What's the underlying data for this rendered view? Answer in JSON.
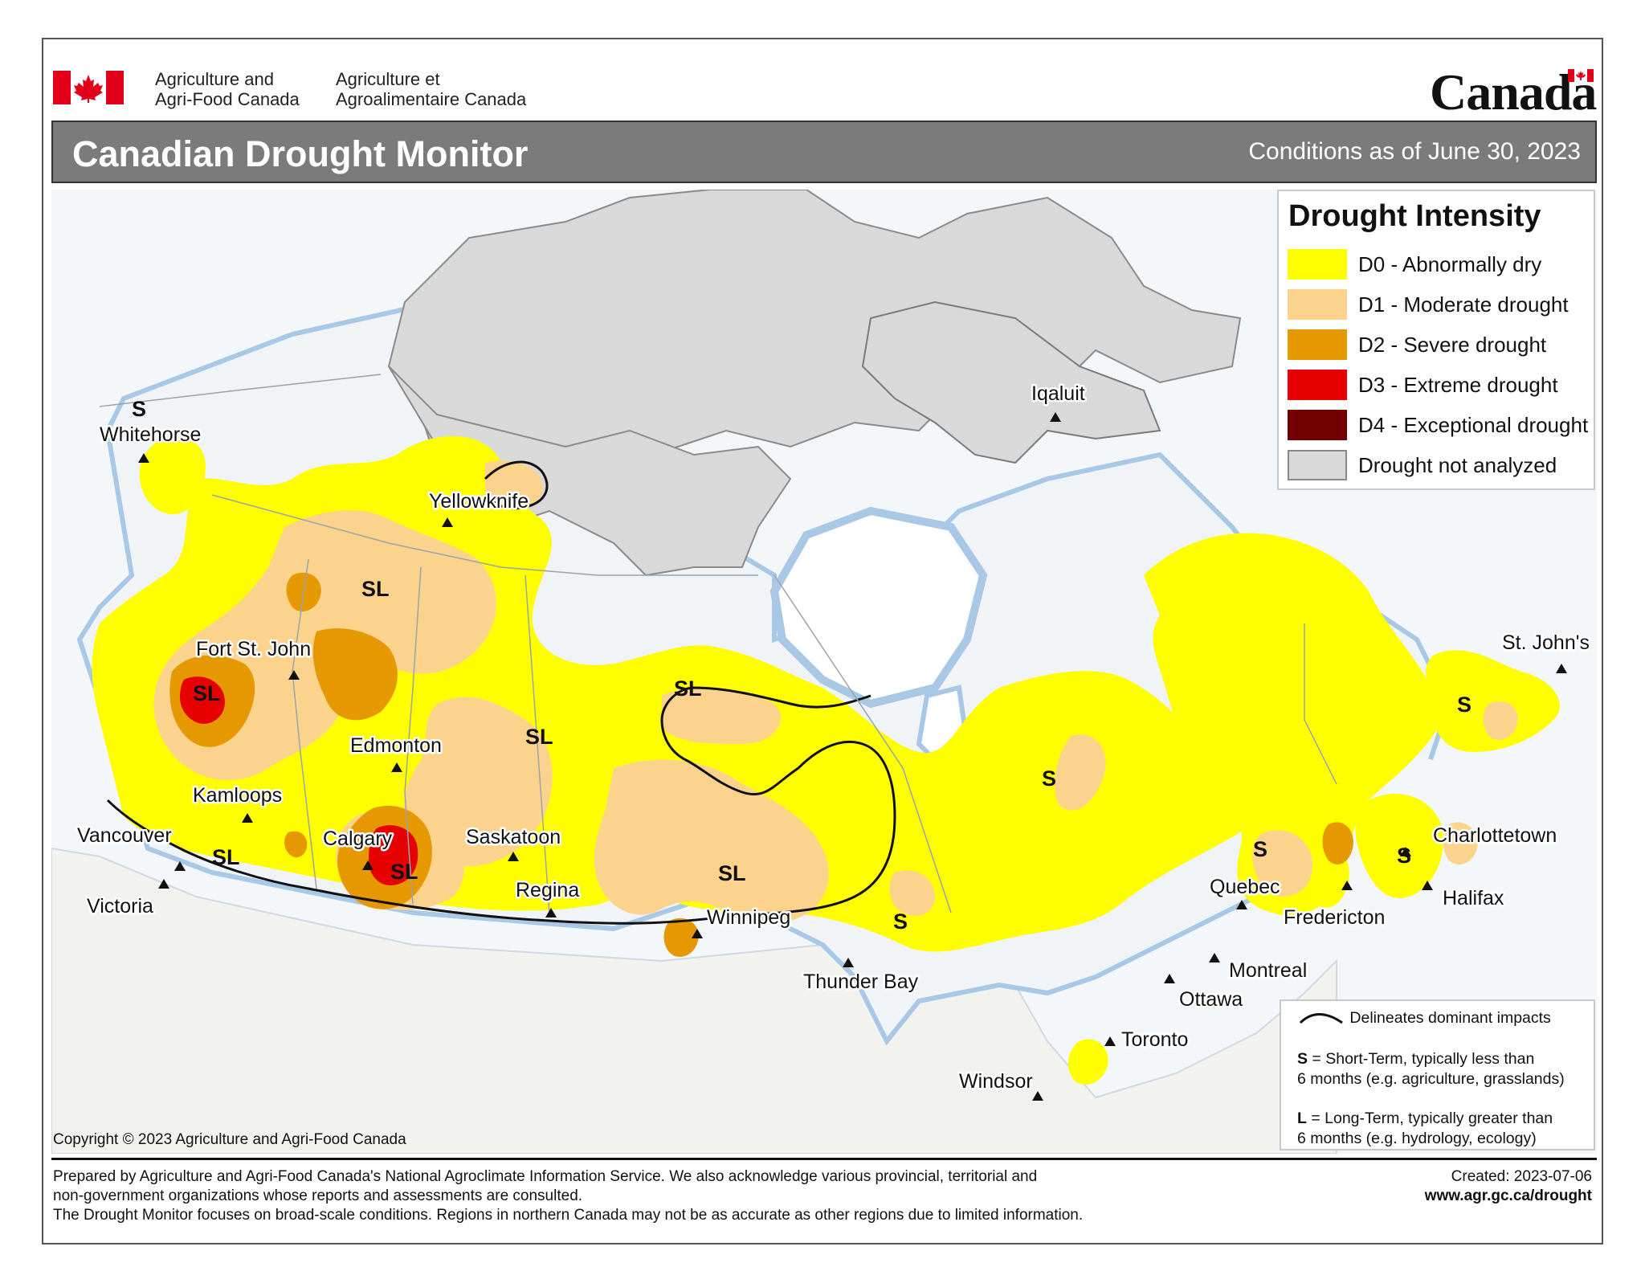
{
  "header": {
    "gov_en_line1": "Agriculture and",
    "gov_en_line2": "Agri-Food Canada",
    "gov_fr_line1": "Agriculture et",
    "gov_fr_line2": "Agroalimentaire Canada",
    "wordmark": "Canada",
    "title": "Canadian Drought Monitor",
    "date": "Conditions as of June 30, 2023"
  },
  "legend": {
    "title": "Drought Intensity",
    "items": [
      {
        "label": "D0 - Abnormally dry",
        "color": "#ffff00"
      },
      {
        "label": "D1 - Moderate drought",
        "color": "#fcd38c"
      },
      {
        "label": "D2 - Severe drought",
        "color": "#e69800"
      },
      {
        "label": "D3 - Extreme drought",
        "color": "#e60000"
      },
      {
        "label": "D4 - Exceptional drought",
        "color": "#730000"
      },
      {
        "label": "Drought not analyzed",
        "color": "#d9d9d9"
      }
    ]
  },
  "impacts": {
    "line_text": "Delineates dominant impacts",
    "s_key": "S",
    "s_text1": " = Short-Term, typically less than",
    "s_text2": "6 months (e.g. agriculture, grasslands)",
    "l_key": "L",
    "l_text1": " = Long-Term, typically greater  than",
    "l_text2": "6 months (e.g. hydrology, ecology)"
  },
  "cities": [
    {
      "name": "Whitehorse"
    },
    {
      "name": "Yellowknife"
    },
    {
      "name": "Iqaluit"
    },
    {
      "name": "Fort St. John"
    },
    {
      "name": "Edmonton"
    },
    {
      "name": "Kamloops"
    },
    {
      "name": "Vancouver"
    },
    {
      "name": "Victoria"
    },
    {
      "name": "Calgary"
    },
    {
      "name": "Saskatoon"
    },
    {
      "name": "Regina"
    },
    {
      "name": "Winnipeg"
    },
    {
      "name": "Thunder Bay"
    },
    {
      "name": "St. John's"
    },
    {
      "name": "Charlottetown"
    },
    {
      "name": "Halifax"
    },
    {
      "name": "Quebec"
    },
    {
      "name": "Fredericton"
    },
    {
      "name": "Montreal"
    },
    {
      "name": "Ottawa"
    },
    {
      "name": "Toronto"
    },
    {
      "name": "Windsor"
    }
  ],
  "impact_codes": [
    "S",
    "SL",
    "SL",
    "SL",
    "SL",
    "SL",
    "SL",
    "SL",
    "S",
    "S",
    "S",
    "S",
    "S"
  ],
  "copyright": "Copyright © 2023 Agriculture and Agri-Food Canada",
  "footer": {
    "line1": "Prepared by Agriculture and Agri-Food Canada's National Agroclimate Information Service.  We also acknowledge various provincial, territorial and",
    "line2": "non-government organizations whose reports and assessments are consulted.",
    "line3": "The Drought Monitor focuses on broad-scale conditions.  Regions in northern Canada may not be as accurate as other regions due to limited information.",
    "created": "Created: 2023-07-06",
    "url": "www.agr.gc.ca/drought"
  }
}
